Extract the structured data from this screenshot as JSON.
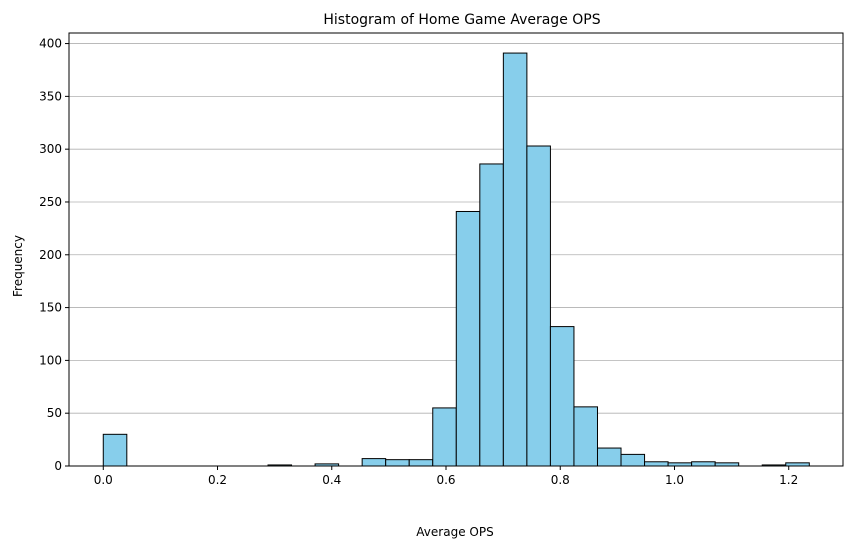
{
  "chart_data": {
    "type": "bar",
    "title": "Histogram of Home Game Average OPS",
    "xlabel": "Average OPS",
    "ylabel": "Frequency",
    "xlim": [
      -0.06,
      1.295
    ],
    "ylim": [
      0,
      410
    ],
    "xticks": [
      0.0,
      0.2,
      0.4,
      0.6,
      0.8,
      1.0,
      1.2
    ],
    "xtick_labels": [
      "0.0",
      "0.2",
      "0.4",
      "0.6",
      "0.8",
      "1.0",
      "1.2"
    ],
    "yticks": [
      0,
      50,
      100,
      150,
      200,
      250,
      300,
      350,
      400
    ],
    "ytick_labels": [
      "0",
      "50",
      "100",
      "150",
      "200",
      "250",
      "300",
      "350",
      "400"
    ],
    "grid": "y",
    "bar_color": "#87ceeb",
    "edge_color": "#000000",
    "bin_start": 0.0,
    "bin_width": 0.0412,
    "values": [
      30,
      0,
      0,
      0,
      0,
      0,
      0,
      1,
      0,
      2,
      0,
      7,
      6,
      6,
      55,
      241,
      286,
      391,
      303,
      132,
      56,
      17,
      11,
      4,
      3,
      4,
      3,
      0,
      1,
      3
    ]
  }
}
